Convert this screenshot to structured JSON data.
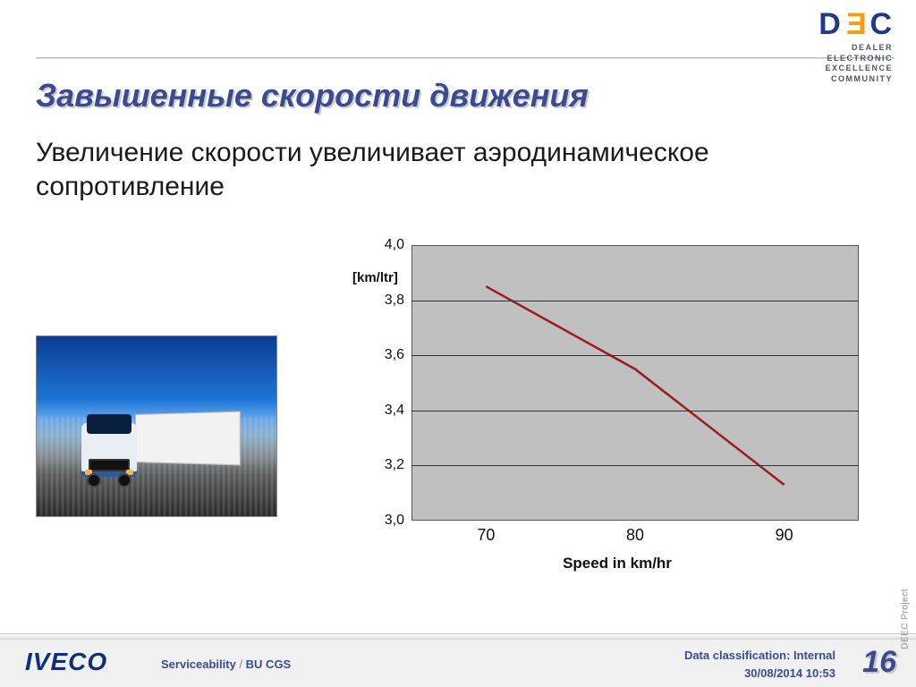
{
  "logo": {
    "letters": [
      "D",
      "E",
      "C"
    ],
    "tagline_l1": "DEALER ELECTRONIC",
    "tagline_l2": "EXCELLENCE COMMUNITY"
  },
  "title": "Завышенные скорости движения",
  "subtitle": "Увеличение скорости увеличивает аэродинамическое сопротивление",
  "chart": {
    "type": "line",
    "y_unit": "[km/ltr]",
    "x_label": "Speed in km/hr",
    "ylim": [
      3.0,
      4.0
    ],
    "xlim": [
      65,
      95
    ],
    "y_ticks": [
      "4,0",
      "3,8",
      "3,6",
      "3,4",
      "3,2",
      "3,0"
    ],
    "y_tick_values": [
      4.0,
      3.8,
      3.6,
      3.4,
      3.2,
      3.0
    ],
    "x_ticks": [
      "70",
      "80",
      "90"
    ],
    "x_tick_values": [
      70,
      80,
      90
    ],
    "line_color": "#9e1b1b",
    "line_width": 2.5,
    "plot_bg": "#c0c0c0",
    "grid_color": "#333333",
    "points": [
      {
        "x": 70,
        "y": 3.85
      },
      {
        "x": 80,
        "y": 3.55
      },
      {
        "x": 90,
        "y": 3.13
      }
    ]
  },
  "footer": {
    "brand": "IVECO",
    "center_a": "Serviceability",
    "center_sep": " / ",
    "center_b": "BU CGS",
    "classification": "Data classification: Internal",
    "datetime": "30/08/2014 10:53",
    "page": "16",
    "side": "DEEC Project"
  }
}
